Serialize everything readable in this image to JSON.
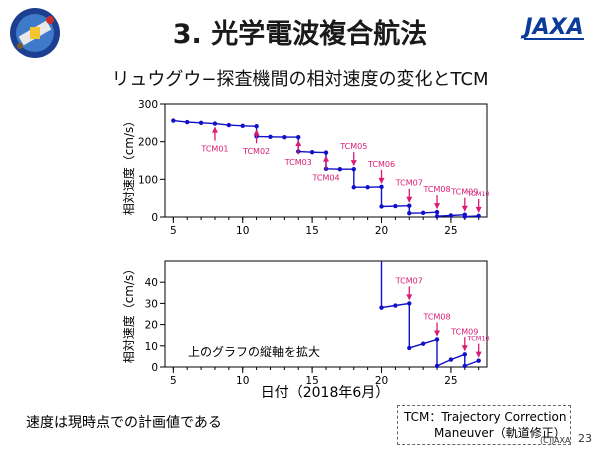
{
  "slide": {
    "title": "3. 光学電波複合航法",
    "subtitle": "リュウグウ−探査機間の相対速度の変化とTCM",
    "note": "速度は現時点での計画値である",
    "legend_line1": "TCM：Trajectory Correction",
    "legend_line2": "Maneuver（軌道修正）",
    "copyright": "(C)JAXA",
    "page_number": "23"
  },
  "colors": {
    "line": "#1010c8",
    "marker": "#1010c8",
    "annotation": "#d81b75",
    "axis": "#000000"
  },
  "chart_data": [
    {
      "type": "line",
      "xlabel": "日付（2018年6月）",
      "ylabel": "相対速度（cm/s）",
      "xlim": [
        4.4,
        27.6
      ],
      "ylim": [
        0,
        300
      ],
      "xticks": [
        5,
        10,
        15,
        20,
        25
      ],
      "yticks": [
        0,
        100,
        200,
        300
      ],
      "series": [
        {
          "points": [
            [
              5,
              256
            ],
            [
              6,
              252
            ],
            [
              7,
              250
            ],
            [
              8,
              248
            ],
            [
              9,
              244
            ],
            [
              10,
              242
            ],
            [
              11,
              241
            ],
            [
              11,
              214
            ],
            [
              12,
              213
            ],
            [
              13,
              212
            ],
            [
              14,
              212
            ],
            [
              14,
              174
            ],
            [
              15,
              172
            ],
            [
              16,
              171
            ],
            [
              16,
              128
            ],
            [
              17,
              127
            ],
            [
              18,
              127
            ],
            [
              18,
              79
            ],
            [
              19,
              79
            ],
            [
              20,
              80
            ],
            [
              20,
              28
            ],
            [
              21,
              29
            ],
            [
              22,
              30
            ],
            [
              22,
              10
            ],
            [
              23,
              11
            ],
            [
              24,
              13
            ],
            [
              24,
              2
            ],
            [
              25,
              4
            ],
            [
              26,
              6
            ],
            [
              26,
              1
            ],
            [
              27,
              3
            ]
          ]
        }
      ],
      "annotations": [
        {
          "label": "TCM01",
          "x": 8,
          "y": 248,
          "side": "below"
        },
        {
          "label": "TCM02",
          "x": 11,
          "y": 241,
          "side": "below"
        },
        {
          "label": "TCM03",
          "x": 14,
          "y": 212,
          "side": "below"
        },
        {
          "label": "TCM04",
          "x": 16,
          "y": 171,
          "side": "below"
        },
        {
          "label": "TCM05",
          "x": 18,
          "y": 127,
          "side": "above"
        },
        {
          "label": "TCM06",
          "x": 20,
          "y": 80,
          "side": "above"
        },
        {
          "label": "TCM07",
          "x": 22,
          "y": 30,
          "side": "above"
        },
        {
          "label": "TCM08",
          "x": 24,
          "y": 13,
          "side": "above"
        },
        {
          "label": "TCM09",
          "x": 26,
          "y": 6,
          "side": "above"
        },
        {
          "label": "TCM10",
          "x": 27,
          "y": 3,
          "side": "above"
        }
      ]
    },
    {
      "type": "line",
      "xlabel": "日付（2018年6月）",
      "ylabel": "相対速度（cm/s）",
      "xlim": [
        4.4,
        27.6
      ],
      "ylim": [
        0,
        50
      ],
      "xticks": [
        5,
        10,
        15,
        20,
        25
      ],
      "yticks": [
        0,
        10,
        20,
        30,
        40
      ],
      "inset_text": "上のグラフの縦軸を拡大",
      "series": [
        {
          "points": [
            [
              20,
              80
            ],
            [
              20,
              28
            ],
            [
              21,
              29
            ],
            [
              22,
              30
            ],
            [
              22,
              9
            ],
            [
              23,
              11
            ],
            [
              24,
              13
            ],
            [
              24,
              0.5
            ],
            [
              25,
              3.5
            ],
            [
              26,
              6
            ],
            [
              26,
              0.5
            ],
            [
              27,
              3
            ]
          ]
        }
      ],
      "annotations": [
        {
          "label": "TCM07",
          "x": 22,
          "y": 30,
          "side": "above"
        },
        {
          "label": "TCM08",
          "x": 24,
          "y": 13,
          "side": "above"
        },
        {
          "label": "TCM09",
          "x": 26,
          "y": 6,
          "side": "above"
        },
        {
          "label": "TCM10",
          "x": 27,
          "y": 3,
          "side": "above"
        }
      ]
    }
  ]
}
